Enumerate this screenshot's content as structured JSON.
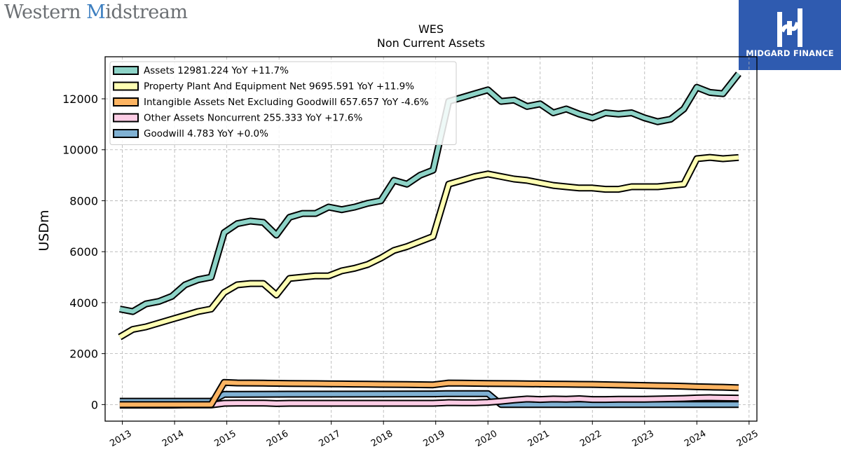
{
  "header": {
    "brand_left": "Western ",
    "brand_accent": "M",
    "brand_right": "idstream",
    "partner_name": "MIDGARD FINANCE"
  },
  "chart_data": {
    "type": "line",
    "title": "WES",
    "subtitle": "Non Current  Assets",
    "xlabel": "",
    "ylabel": "USDm",
    "xlim": [
      2012.67,
      2025.15
    ],
    "ylim": [
      -650,
      13650
    ],
    "yticks": [
      0,
      2000,
      4000,
      6000,
      8000,
      10000,
      12000
    ],
    "xticks": [
      "2013",
      "2014",
      "2015",
      "2016",
      "2017",
      "2018",
      "2019",
      "2020",
      "2021",
      "2022",
      "2023",
      "2024",
      "2025"
    ],
    "grid": true,
    "legend_position": "top-left",
    "series": [
      {
        "name": "Assets  12981.224 YoY +11.7%",
        "color": "#8dd3c7",
        "points": [
          [
            2012.95,
            3750
          ],
          [
            2013.2,
            3650
          ],
          [
            2013.45,
            3950
          ],
          [
            2013.7,
            4050
          ],
          [
            2013.95,
            4250
          ],
          [
            2014.2,
            4700
          ],
          [
            2014.45,
            4900
          ],
          [
            2014.7,
            5000
          ],
          [
            2014.95,
            6750
          ],
          [
            2015.2,
            7100
          ],
          [
            2015.45,
            7200
          ],
          [
            2015.7,
            7150
          ],
          [
            2015.95,
            6650
          ],
          [
            2016.2,
            7350
          ],
          [
            2016.45,
            7500
          ],
          [
            2016.7,
            7500
          ],
          [
            2016.95,
            7750
          ],
          [
            2017.2,
            7650
          ],
          [
            2017.45,
            7750
          ],
          [
            2017.7,
            7900
          ],
          [
            2017.95,
            8000
          ],
          [
            2018.2,
            8800
          ],
          [
            2018.45,
            8650
          ],
          [
            2018.7,
            9000
          ],
          [
            2018.95,
            9200
          ],
          [
            2019.25,
            11900
          ],
          [
            2019.5,
            12050
          ],
          [
            2019.75,
            12200
          ],
          [
            2020.0,
            12350
          ],
          [
            2020.25,
            11900
          ],
          [
            2020.5,
            11950
          ],
          [
            2020.75,
            11700
          ],
          [
            2021.0,
            11800
          ],
          [
            2021.25,
            11450
          ],
          [
            2021.5,
            11600
          ],
          [
            2021.75,
            11400
          ],
          [
            2022.0,
            11250
          ],
          [
            2022.25,
            11450
          ],
          [
            2022.5,
            11400
          ],
          [
            2022.75,
            11450
          ],
          [
            2023.0,
            11250
          ],
          [
            2023.25,
            11100
          ],
          [
            2023.5,
            11200
          ],
          [
            2023.75,
            11600
          ],
          [
            2024.0,
            12450
          ],
          [
            2024.25,
            12250
          ],
          [
            2024.5,
            12200
          ],
          [
            2024.8,
            12981
          ]
        ]
      },
      {
        "name": "Property Plant And Equipment Net  9695.591 YoY +11.9%",
        "color": "#ffffb3",
        "points": [
          [
            2012.95,
            2650
          ],
          [
            2013.2,
            2950
          ],
          [
            2013.45,
            3050
          ],
          [
            2013.7,
            3200
          ],
          [
            2013.95,
            3350
          ],
          [
            2014.2,
            3500
          ],
          [
            2014.45,
            3650
          ],
          [
            2014.7,
            3750
          ],
          [
            2014.95,
            4400
          ],
          [
            2015.2,
            4700
          ],
          [
            2015.45,
            4750
          ],
          [
            2015.7,
            4750
          ],
          [
            2015.95,
            4300
          ],
          [
            2016.2,
            4950
          ],
          [
            2016.45,
            5000
          ],
          [
            2016.7,
            5050
          ],
          [
            2016.95,
            5050
          ],
          [
            2017.2,
            5250
          ],
          [
            2017.45,
            5350
          ],
          [
            2017.7,
            5500
          ],
          [
            2017.95,
            5750
          ],
          [
            2018.2,
            6050
          ],
          [
            2018.45,
            6200
          ],
          [
            2018.7,
            6400
          ],
          [
            2018.95,
            6600
          ],
          [
            2019.25,
            8650
          ],
          [
            2019.5,
            8800
          ],
          [
            2019.75,
            8950
          ],
          [
            2020.0,
            9050
          ],
          [
            2020.25,
            8950
          ],
          [
            2020.5,
            8850
          ],
          [
            2020.75,
            8800
          ],
          [
            2021.0,
            8700
          ],
          [
            2021.25,
            8600
          ],
          [
            2021.5,
            8550
          ],
          [
            2021.75,
            8500
          ],
          [
            2022.0,
            8500
          ],
          [
            2022.25,
            8450
          ],
          [
            2022.5,
            8450
          ],
          [
            2022.75,
            8550
          ],
          [
            2023.0,
            8550
          ],
          [
            2023.25,
            8550
          ],
          [
            2023.5,
            8600
          ],
          [
            2023.75,
            8650
          ],
          [
            2024.0,
            9650
          ],
          [
            2024.25,
            9700
          ],
          [
            2024.5,
            9650
          ],
          [
            2024.8,
            9696
          ]
        ]
      },
      {
        "name": "Intangible Assets Net Excluding Goodwill  657.657 YoY -4.6%",
        "color": "#fdb462",
        "points": [
          [
            2012.95,
            0
          ],
          [
            2013.2,
            0
          ],
          [
            2013.45,
            0
          ],
          [
            2013.7,
            0
          ],
          [
            2013.95,
            0
          ],
          [
            2014.2,
            0
          ],
          [
            2014.45,
            0
          ],
          [
            2014.7,
            0
          ],
          [
            2014.95,
            870
          ],
          [
            2015.2,
            850
          ],
          [
            2015.45,
            845
          ],
          [
            2015.7,
            840
          ],
          [
            2015.95,
            835
          ],
          [
            2016.2,
            830
          ],
          [
            2016.45,
            825
          ],
          [
            2016.7,
            820
          ],
          [
            2016.95,
            815
          ],
          [
            2017.2,
            810
          ],
          [
            2017.45,
            805
          ],
          [
            2017.7,
            800
          ],
          [
            2017.95,
            795
          ],
          [
            2018.2,
            790
          ],
          [
            2018.45,
            785
          ],
          [
            2018.7,
            780
          ],
          [
            2018.95,
            775
          ],
          [
            2019.25,
            845
          ],
          [
            2019.5,
            840
          ],
          [
            2019.75,
            835
          ],
          [
            2020.0,
            830
          ],
          [
            2020.25,
            825
          ],
          [
            2020.5,
            820
          ],
          [
            2020.75,
            815
          ],
          [
            2021.0,
            810
          ],
          [
            2021.25,
            805
          ],
          [
            2021.5,
            800
          ],
          [
            2021.75,
            795
          ],
          [
            2022.0,
            790
          ],
          [
            2022.25,
            780
          ],
          [
            2022.5,
            770
          ],
          [
            2022.75,
            760
          ],
          [
            2023.0,
            750
          ],
          [
            2023.25,
            740
          ],
          [
            2023.5,
            730
          ],
          [
            2023.75,
            720
          ],
          [
            2024.0,
            700
          ],
          [
            2024.25,
            690
          ],
          [
            2024.5,
            680
          ],
          [
            2024.8,
            658
          ]
        ]
      },
      {
        "name": "Other Assets Noncurrent  255.333 YoY +17.6%",
        "color": "#fccde5",
        "points": [
          [
            2012.95,
            -20
          ],
          [
            2013.2,
            -20
          ],
          [
            2013.45,
            -20
          ],
          [
            2013.7,
            -20
          ],
          [
            2013.95,
            -20
          ],
          [
            2014.2,
            -15
          ],
          [
            2014.45,
            -15
          ],
          [
            2014.7,
            -15
          ],
          [
            2014.95,
            50
          ],
          [
            2015.2,
            60
          ],
          [
            2015.45,
            60
          ],
          [
            2015.7,
            60
          ],
          [
            2015.95,
            40
          ],
          [
            2016.2,
            50
          ],
          [
            2016.45,
            50
          ],
          [
            2016.7,
            50
          ],
          [
            2016.95,
            50
          ],
          [
            2017.2,
            50
          ],
          [
            2017.45,
            50
          ],
          [
            2017.7,
            50
          ],
          [
            2017.95,
            50
          ],
          [
            2018.2,
            50
          ],
          [
            2018.45,
            50
          ],
          [
            2018.7,
            50
          ],
          [
            2018.95,
            50
          ],
          [
            2019.25,
            80
          ],
          [
            2019.5,
            70
          ],
          [
            2019.75,
            70
          ],
          [
            2020.0,
            90
          ],
          [
            2020.25,
            130
          ],
          [
            2020.5,
            180
          ],
          [
            2020.75,
            220
          ],
          [
            2021.0,
            200
          ],
          [
            2021.25,
            220
          ],
          [
            2021.5,
            210
          ],
          [
            2021.75,
            230
          ],
          [
            2022.0,
            200
          ],
          [
            2022.25,
            200
          ],
          [
            2022.5,
            210
          ],
          [
            2022.75,
            210
          ],
          [
            2023.0,
            210
          ],
          [
            2023.25,
            220
          ],
          [
            2023.5,
            230
          ],
          [
            2023.75,
            240
          ],
          [
            2024.0,
            260
          ],
          [
            2024.25,
            270
          ],
          [
            2024.5,
            260
          ],
          [
            2024.8,
            255
          ]
        ]
      },
      {
        "name": "Goodwill  4.783 YoY +0.0%",
        "color": "#80b1d3",
        "points": [
          [
            2012.95,
            130
          ],
          [
            2014.7,
            130
          ],
          [
            2014.95,
            400
          ],
          [
            2015.2,
            400
          ],
          [
            2016.2,
            410
          ],
          [
            2018.95,
            420
          ],
          [
            2019.25,
            430
          ],
          [
            2020.0,
            430
          ],
          [
            2020.25,
            5
          ],
          [
            2024.8,
            5
          ]
        ]
      }
    ]
  }
}
